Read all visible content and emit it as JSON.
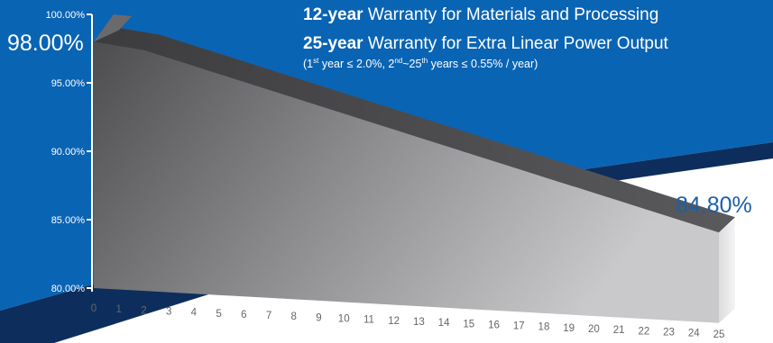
{
  "header": {
    "line1_bold": "12-year",
    "line1_text": " Warranty for Materials and Processing",
    "line2_bold": "25-year",
    "line2_text": " Warranty for Extra Linear Power Output",
    "line3_a": "(1",
    "line3_sup1": "st",
    "line3_b": " year ≤ 2.0%, 2",
    "line3_sup2": "nd",
    "line3_c": "~25",
    "line3_sup3": "th",
    "line3_d": " years ≤ 0.55% / year)"
  },
  "labels": {
    "start_value": "98.00%",
    "end_value": "84.80%"
  },
  "colors": {
    "band_blue": "#0a64b4",
    "band_dark": "#0d2e5c",
    "end_label": "#1a5fa8",
    "axis": "#ffffff"
  },
  "chart_data": {
    "type": "area",
    "title": "",
    "xlabel": "",
    "ylabel": "",
    "x": [
      0,
      1,
      2,
      3,
      4,
      5,
      6,
      7,
      8,
      9,
      10,
      11,
      12,
      13,
      14,
      15,
      16,
      17,
      18,
      19,
      20,
      21,
      22,
      23,
      24,
      25
    ],
    "x_tick_labels": [
      "0",
      "1",
      "2",
      "3",
      "4",
      "5",
      "6",
      "7",
      "8",
      "9",
      "10",
      "11",
      "12",
      "13",
      "14",
      "15",
      "16",
      "17",
      "18",
      "19",
      "20",
      "21",
      "22",
      "23",
      "24",
      "25"
    ],
    "ylim": [
      80,
      100
    ],
    "y_ticks": [
      80,
      85,
      90,
      95,
      100
    ],
    "y_tick_labels": [
      "80.00%",
      "85.00%",
      "90.00%",
      "95.00%",
      "100.00%"
    ],
    "series": [
      {
        "values": [
          100,
          98,
          97.45,
          96.9,
          96.35,
          95.8,
          95.25,
          94.7,
          94.15,
          93.6,
          93.05,
          92.5,
          91.95,
          91.4,
          90.85,
          90.3,
          89.75,
          89.2,
          88.65,
          88.1,
          87.55,
          87,
          86.45,
          85.9,
          85.35,
          84.8
        ]
      }
    ],
    "grid": false,
    "legend": "none"
  }
}
